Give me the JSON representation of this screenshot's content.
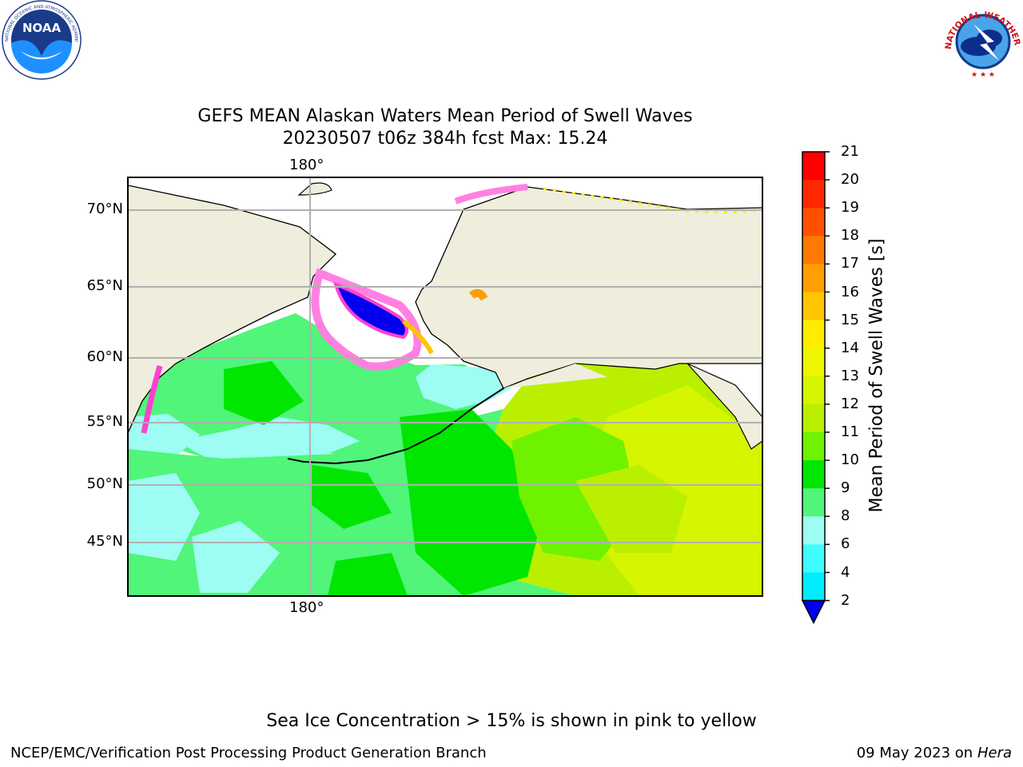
{
  "title_line1": "GEFS MEAN Alaskan Waters Mean Period of Swell Waves",
  "title_line2": "20230507 t06z 384h fcst   Max: 15.24",
  "map": {
    "lon_label_top": "180°",
    "lon_label_bottom": "180°",
    "lat_labels": [
      "70°N",
      "65°N",
      "60°N",
      "55°N",
      "50°N",
      "45°N"
    ],
    "land_color": "#efeddc",
    "gridline_color": "#b0b0b0"
  },
  "colorbar": {
    "label": "Mean Period of Swell Waves [s]",
    "ticks": [
      "21",
      "20",
      "19",
      "18",
      "17",
      "16",
      "15",
      "14",
      "13",
      "12",
      "11",
      "10",
      "9",
      "8",
      "6",
      "4",
      "2"
    ],
    "colors": [
      "#ff0000",
      "#ff2800",
      "#ff5000",
      "#ff7800",
      "#ff9e00",
      "#ffc400",
      "#ffec00",
      "#f0f500",
      "#d5f500",
      "#baf000",
      "#6ef200",
      "#00e600",
      "#50f57a",
      "#9efdf3",
      "#3ffcff",
      "#00ecff",
      "#0080ff"
    ],
    "extend_color": "#0000ee"
  },
  "logos": {
    "noaa_text": "NOAA",
    "noaa_ring_text": "NATIONAL OCEANIC AND ATMOSPHERIC ADMINISTRATION · U.S. DEPARTMENT OF COMMERCE",
    "nws_ring_text": "NATIONAL WEATHER SERVICE"
  },
  "footer": {
    "note": "Sea Ice Concentration > 15% is shown in pink to yellow",
    "credit": "NCEP/EMC/Verification Post Processing Product Generation Branch",
    "date": "09 May 2023 on",
    "host": "Hera"
  }
}
